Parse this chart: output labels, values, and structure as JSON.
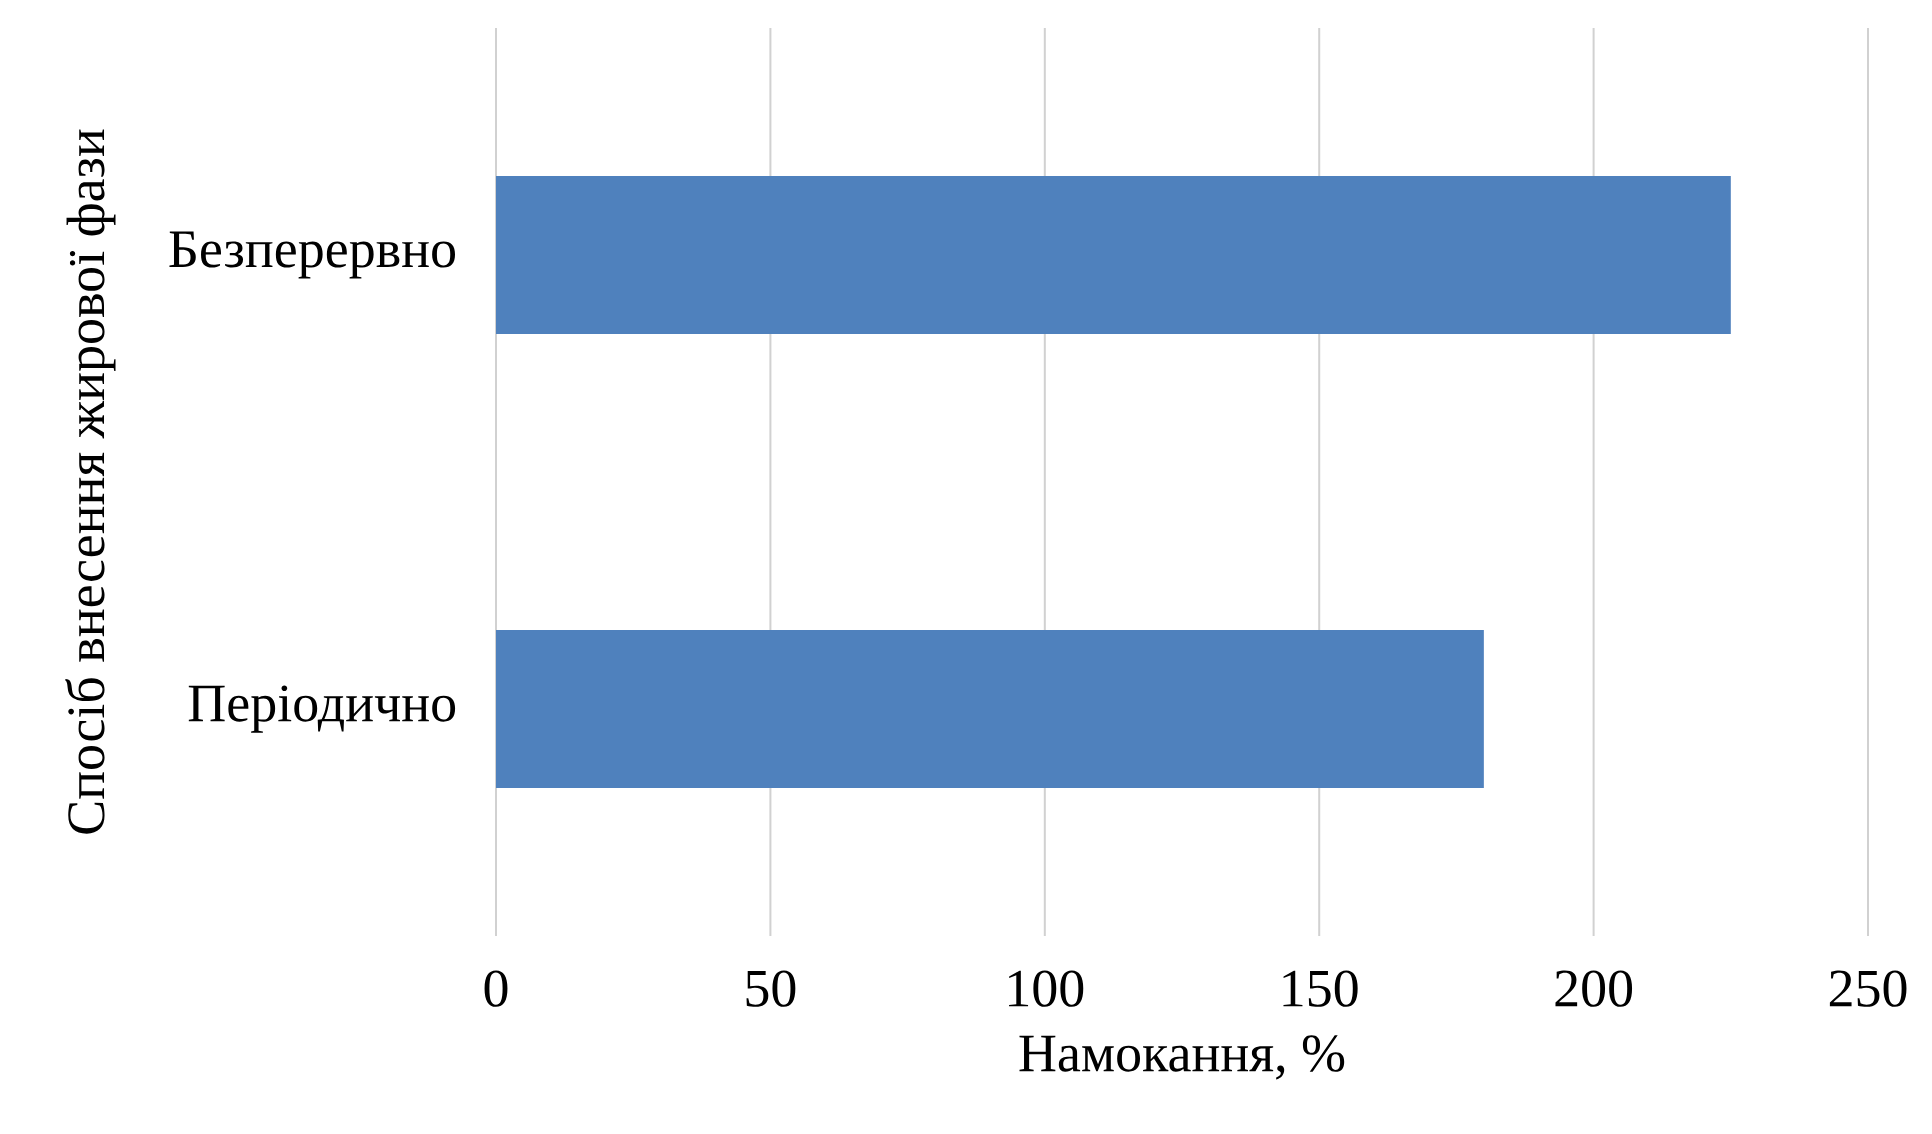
{
  "chart_data": {
    "type": "bar",
    "orientation": "horizontal",
    "xlabel": "Намокання, %",
    "ylabel": "Спосіб внесення жирової фази",
    "categories": [
      "Безперервно",
      "Періодично"
    ],
    "values": [
      225,
      180
    ],
    "color": "#4f81bd",
    "xlim": [
      0,
      250
    ],
    "xticks": [
      0,
      50,
      100,
      150,
      200,
      250
    ],
    "grid": "x"
  }
}
